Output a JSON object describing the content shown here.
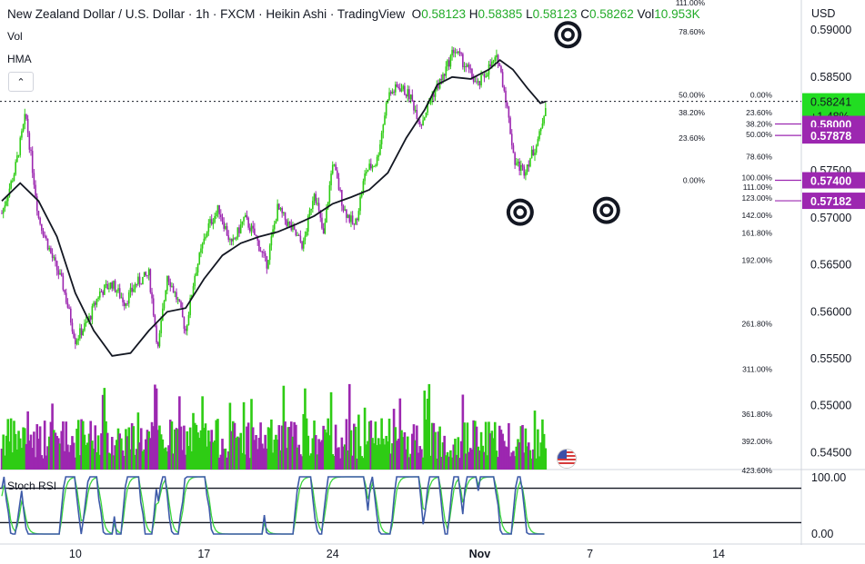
{
  "header": {
    "symbol_title": "New Zealand Dollar / U.S. Dollar · 1h · FXCM · Heikin Ashi · TradingView",
    "open_label": "O",
    "open": "0.58123",
    "high_label": "H",
    "high": "0.58385",
    "low_label": "L",
    "low": "0.58123",
    "close_label": "C",
    "close": "0.58262",
    "vol_label": "Vol",
    "vol": "10.953K"
  },
  "indicators": {
    "vol": "Vol",
    "hma": "HMA",
    "stoch": "Stoch RSI",
    "collapse_icon": "chevron-up-icon"
  },
  "chart_data": {
    "type": "candlestick",
    "style": "heikin-ashi",
    "currency_label": "USD",
    "y_ticks": [
      "0.59000",
      "0.58500",
      "0.58000",
      "0.57500",
      "0.57000",
      "0.56500",
      "0.56000",
      "0.55500",
      "0.55000",
      "0.54500"
    ],
    "y_tick_values": [
      0.59,
      0.585,
      0.58,
      0.575,
      0.57,
      0.565,
      0.56,
      0.555,
      0.55,
      0.545
    ],
    "ylim": [
      0.5432,
      0.5932
    ],
    "x_ticks": [
      "10",
      "17",
      "24",
      "Nov",
      "7",
      "14"
    ],
    "x_tick_days": [
      10,
      17,
      24,
      32,
      38,
      45
    ],
    "xlim": [
      5.9,
      49.5
    ],
    "price_markers": [
      {
        "label": "0.58241",
        "value": 0.58241,
        "color": "#22dd22",
        "sub": "+1.48%"
      },
      {
        "label": "0.58000",
        "value": 0.58,
        "color": "#9c27b0"
      },
      {
        "label": "0.57878",
        "value": 0.57878,
        "color": "#9c27b0"
      },
      {
        "label": "0.57400",
        "value": 0.574,
        "color": "#9c27b0"
      },
      {
        "label": "0.57182",
        "value": 0.57182,
        "color": "#9c27b0"
      }
    ],
    "current_price": 0.58241,
    "fib_sets": [
      {
        "levels": [
          {
            "label": "111.00%",
            "value": 0.5929
          },
          {
            "label": "78.60%",
            "value": 0.5898
          },
          {
            "label": "50.00%",
            "value": 0.5831
          },
          {
            "label": "38.20%",
            "value": 0.5812
          },
          {
            "label": "23.60%",
            "value": 0.5785
          },
          {
            "label": "0.00%",
            "value": 0.574
          }
        ]
      },
      {
        "levels": [
          {
            "label": "0.00%",
            "value": 0.5831
          },
          {
            "label": "23.60%",
            "value": 0.5812
          },
          {
            "label": "38.20%",
            "value": 0.58
          },
          {
            "label": "50.00%",
            "value": 0.5789
          },
          {
            "label": "78.60%",
            "value": 0.5765
          },
          {
            "label": "100.00%",
            "value": 0.5743
          },
          {
            "label": "111.00%",
            "value": 0.5733
          },
          {
            "label": "123.00%",
            "value": 0.5721
          },
          {
            "label": "142.00%",
            "value": 0.5703
          },
          {
            "label": "161.80%",
            "value": 0.5684
          },
          {
            "label": "192.00%",
            "value": 0.5655
          },
          {
            "label": "261.80%",
            "value": 0.5587
          },
          {
            "label": "311.00%",
            "value": 0.5539
          },
          {
            "label": "361.80%",
            "value": 0.5491
          },
          {
            "label": "392.00%",
            "value": 0.5462
          },
          {
            "label": "423.60%",
            "value": 0.5431
          }
        ]
      }
    ],
    "target_icons": [
      {
        "name": "target-icon-top",
        "x": 36.8,
        "y": 0.5895
      },
      {
        "name": "target-icon-left",
        "x": 34.2,
        "y": 0.5706
      },
      {
        "name": "target-icon-right",
        "x": 38.9,
        "y": 0.5708
      }
    ],
    "candle_path_anchors": [
      [
        6.0,
        0.5705
      ],
      [
        6.7,
        0.575
      ],
      [
        7.3,
        0.581
      ],
      [
        8.0,
        0.57
      ],
      [
        8.7,
        0.566
      ],
      [
        9.3,
        0.563
      ],
      [
        10.0,
        0.557
      ],
      [
        10.7,
        0.559
      ],
      [
        11.3,
        0.562
      ],
      [
        12.0,
        0.563
      ],
      [
        12.7,
        0.561
      ],
      [
        13.3,
        0.563
      ],
      [
        14.0,
        0.564
      ],
      [
        14.5,
        0.556
      ],
      [
        15.0,
        0.564
      ],
      [
        15.6,
        0.561
      ],
      [
        16.0,
        0.558
      ],
      [
        16.5,
        0.564
      ],
      [
        17.2,
        0.569
      ],
      [
        17.8,
        0.571
      ],
      [
        18.5,
        0.567
      ],
      [
        19.2,
        0.57
      ],
      [
        19.8,
        0.568
      ],
      [
        20.4,
        0.565
      ],
      [
        21.0,
        0.571
      ],
      [
        21.7,
        0.569
      ],
      [
        22.4,
        0.567
      ],
      [
        23.0,
        0.573
      ],
      [
        23.5,
        0.568
      ],
      [
        24.0,
        0.576
      ],
      [
        24.6,
        0.571
      ],
      [
        25.2,
        0.569
      ],
      [
        25.8,
        0.575
      ],
      [
        26.4,
        0.576
      ],
      [
        27.0,
        0.583
      ],
      [
        27.6,
        0.584
      ],
      [
        28.2,
        0.583
      ],
      [
        28.8,
        0.58
      ],
      [
        29.4,
        0.583
      ],
      [
        30.0,
        0.585
      ],
      [
        30.6,
        0.588
      ],
      [
        31.3,
        0.586
      ],
      [
        31.9,
        0.584
      ],
      [
        32.5,
        0.586
      ],
      [
        33.0,
        0.587
      ],
      [
        33.4,
        0.583
      ],
      [
        33.9,
        0.576
      ],
      [
        34.4,
        0.575
      ],
      [
        34.9,
        0.577
      ],
      [
        35.3,
        0.579
      ],
      [
        35.6,
        0.5824
      ]
    ],
    "hma_line": [
      [
        6.0,
        0.5718
      ],
      [
        7.0,
        0.5737
      ],
      [
        8.0,
        0.5718
      ],
      [
        9.0,
        0.568
      ],
      [
        10.0,
        0.562
      ],
      [
        11.0,
        0.558
      ],
      [
        12.0,
        0.5553
      ],
      [
        13.0,
        0.5556
      ],
      [
        14.0,
        0.558
      ],
      [
        15.0,
        0.56
      ],
      [
        16.0,
        0.5604
      ],
      [
        17.0,
        0.5635
      ],
      [
        18.0,
        0.566
      ],
      [
        19.0,
        0.5673
      ],
      [
        20.0,
        0.568
      ],
      [
        21.0,
        0.5685
      ],
      [
        22.0,
        0.5693
      ],
      [
        23.0,
        0.5702
      ],
      [
        24.0,
        0.5715
      ],
      [
        25.0,
        0.5722
      ],
      [
        26.0,
        0.573
      ],
      [
        27.0,
        0.5748
      ],
      [
        28.0,
        0.5785
      ],
      [
        29.0,
        0.5815
      ],
      [
        29.7,
        0.5842
      ],
      [
        30.5,
        0.585
      ],
      [
        31.5,
        0.5848
      ],
      [
        32.5,
        0.5858
      ],
      [
        33.1,
        0.5868
      ],
      [
        33.8,
        0.5858
      ],
      [
        34.6,
        0.5838
      ],
      [
        35.3,
        0.5822
      ],
      [
        35.6,
        0.5824
      ]
    ],
    "volume": {
      "ylim": [
        0,
        1.0
      ],
      "last_day": 35.6
    },
    "stoch_rsi": {
      "ylim": [
        0,
        100
      ],
      "upper_band": 80,
      "lower_band": 20,
      "y_ticks": [
        "100.00",
        "0.00"
      ]
    }
  },
  "colors": {
    "up": "#2ecc14",
    "down": "#9c27b0",
    "hma": "#131722",
    "stoch_k": "#2962ff",
    "stoch_d": "#4caf50"
  }
}
